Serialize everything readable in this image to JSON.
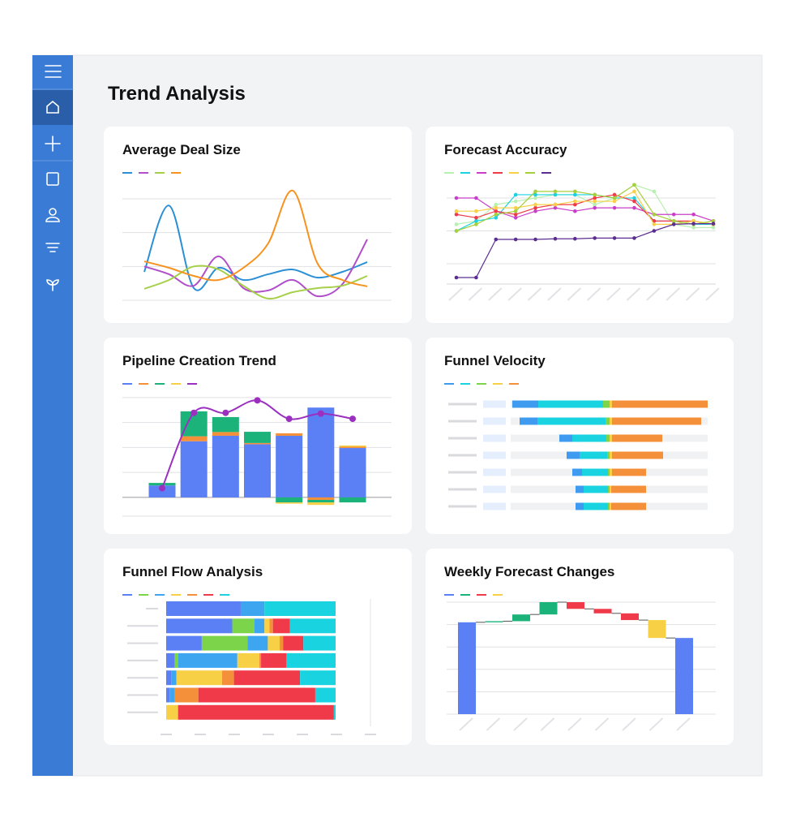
{
  "page": {
    "title": "Trend Analysis"
  },
  "chart_data": [
    {
      "type": "line",
      "title": "Average Deal Size",
      "smooth": true,
      "markers": false,
      "grid": true,
      "categories": [
        null,
        null,
        null,
        null,
        null,
        null,
        null,
        null,
        null,
        null
      ],
      "ylim": [
        0,
        3.3
      ],
      "yticks": [
        0,
        1,
        2,
        3
      ],
      "series": [
        {
          "color": "#2b8fd6",
          "values": [
            0.84,
            2.8,
            0.36,
            0.96,
            0.6,
            0.77,
            0.91,
            0.67,
            0.84,
            1.13
          ]
        },
        {
          "color": "#b04fc9",
          "values": [
            1.0,
            0.77,
            0.43,
            1.3,
            0.36,
            0.29,
            0.6,
            0.12,
            0.48,
            1.8
          ]
        },
        {
          "color": "#a6d04a",
          "values": [
            0.34,
            0.6,
            1.0,
            0.91,
            0.43,
            0.05,
            0.24,
            0.36,
            0.43,
            0.72
          ]
        },
        {
          "color": "#f7921e",
          "values": [
            1.15,
            0.96,
            0.72,
            0.6,
            0.96,
            1.68,
            3.24,
            1.08,
            0.6,
            0.41
          ]
        }
      ]
    },
    {
      "type": "line",
      "title": "Forecast Accuracy",
      "smooth": false,
      "markers": true,
      "grid": true,
      "categories": [
        null,
        null,
        null,
        null,
        null,
        null,
        null,
        null,
        null,
        null,
        null,
        null,
        null,
        null
      ],
      "ylim": [
        0,
        3.5
      ],
      "yticks": [
        1,
        2,
        3
      ],
      "series": [
        {
          "color": "#b7f0b1",
          "values": [
            2.2,
            2.3,
            2.8,
            2.9,
            3.0,
            3.1,
            3.1,
            2.8,
            3.0,
            3.4,
            3.2,
            2.2,
            2.1,
            2.1
          ]
        },
        {
          "color": "#19d3e0",
          "values": [
            2.0,
            2.3,
            2.4,
            3.1,
            3.1,
            3.1,
            3.1,
            3.1,
            3.0,
            3.0,
            2.3,
            2.3,
            2.2,
            2.2
          ]
        },
        {
          "color": "#c93ec9",
          "values": [
            3.0,
            3.0,
            2.6,
            2.4,
            2.6,
            2.7,
            2.6,
            2.7,
            2.7,
            2.7,
            2.5,
            2.5,
            2.5,
            2.3
          ]
        },
        {
          "color": "#f03a4a",
          "values": [
            2.5,
            2.4,
            2.6,
            2.5,
            2.7,
            2.8,
            2.8,
            3.0,
            3.1,
            2.9,
            2.3,
            2.3,
            2.3,
            2.2
          ]
        },
        {
          "color": "#f7d046",
          "values": [
            2.6,
            2.6,
            2.7,
            2.7,
            2.8,
            2.8,
            2.9,
            2.9,
            2.9,
            3.2,
            2.2,
            2.2,
            2.3,
            2.2
          ]
        },
        {
          "color": "#a6cf3a",
          "values": [
            2.0,
            2.2,
            2.5,
            2.6,
            3.2,
            3.2,
            3.2,
            3.1,
            3.0,
            3.4,
            2.5,
            2.3,
            2.2,
            2.3
          ]
        },
        {
          "color": "#5c2d91",
          "values": [
            0.58,
            0.58,
            1.74,
            1.74,
            1.74,
            1.76,
            1.76,
            1.78,
            1.78,
            1.78,
            2.0,
            2.2,
            2.22,
            2.22
          ]
        }
      ]
    },
    {
      "type": "combo",
      "title": "Pipeline Creation Trend",
      "grid": true,
      "categories": [
        null,
        null,
        null,
        null,
        null,
        null,
        null
      ],
      "ylim": [
        -0.75,
        4.2
      ],
      "yticks": [
        -0.75,
        0,
        1,
        2,
        3,
        4
      ],
      "series": [
        {
          "type": "bar",
          "color": "#5b7ff5",
          "values": [
            0.48,
            2.25,
            2.47,
            2.13,
            2.47,
            3.6,
            1.98
          ]
        },
        {
          "type": "bar",
          "color": "#f5903a",
          "values": [
            0,
            0.2,
            0.15,
            0.05,
            0.1,
            -0.1,
            0.05
          ]
        },
        {
          "type": "bar",
          "color": "#1bb37a",
          "values": [
            0.1,
            1.0,
            0.6,
            0.45,
            -0.2,
            -0.1,
            -0.2
          ]
        },
        {
          "type": "bar",
          "color": "#f7d046",
          "values": [
            0,
            0,
            0,
            0,
            -0.05,
            -0.1,
            0.05
          ]
        },
        {
          "type": "line",
          "color": "#9b30c0",
          "values": [
            0.37,
            3.39,
            3.39,
            3.89,
            3.15,
            3.36,
            3.15
          ]
        }
      ]
    },
    {
      "type": "diverging_barh",
      "title": "Funnel Velocity",
      "categories": [
        null,
        null,
        null,
        null,
        null,
        null,
        null
      ],
      "xlim": [
        -120,
        120
      ],
      "series": [
        {
          "side": "left",
          "color": "#3e9bf0",
          "values": [
            32,
            22,
            16,
            16,
            12,
            10,
            10
          ]
        },
        {
          "side": "left",
          "color": "#19d3e0",
          "values": [
            80,
            84,
            42,
            34,
            32,
            30,
            30
          ]
        },
        {
          "side": "left",
          "color": "#7bd44a",
          "values": [
            8,
            5,
            4,
            3,
            2,
            2,
            2
          ]
        },
        {
          "side": "right",
          "color": "#f7d046",
          "values": [
            3,
            3,
            3,
            3,
            3,
            2,
            2
          ]
        },
        {
          "side": "right",
          "color": "#f5903a",
          "values": [
            118,
            110,
            62,
            63,
            42,
            43,
            43
          ]
        }
      ]
    },
    {
      "type": "stacked_barh",
      "title": "Funnel Flow Analysis",
      "categories": [
        null,
        null,
        null,
        null,
        null,
        null,
        null
      ],
      "xlim": [
        0,
        100
      ],
      "series": [
        {
          "color": "#5b7ff5",
          "values": [
            44,
            39,
            21,
            5,
            3,
            2,
            0
          ]
        },
        {
          "color": "#7bd44a",
          "values": [
            0,
            13,
            27,
            2,
            0,
            0,
            0
          ]
        },
        {
          "color": "#3ea6f0",
          "values": [
            14,
            6,
            12,
            35,
            3,
            3,
            0
          ]
        },
        {
          "color": "#f7d046",
          "values": [
            0,
            3,
            7,
            13,
            27,
            0,
            7
          ]
        },
        {
          "color": "#f5903a",
          "values": [
            0,
            2,
            2,
            1,
            7,
            14,
            0
          ]
        },
        {
          "color": "#f03a4a",
          "values": [
            0,
            10,
            12,
            15,
            39,
            69,
            92
          ]
        },
        {
          "color": "#19d3e0",
          "values": [
            42,
            27,
            19,
            29,
            21,
            12,
            1
          ]
        }
      ]
    },
    {
      "type": "waterfall",
      "title": "Weekly Forecast Changes",
      "grid": true,
      "categories": [
        null,
        null,
        null,
        null,
        null,
        null,
        null,
        null,
        null
      ],
      "ylim": [
        0,
        5.2
      ],
      "yticks": [
        0,
        1,
        2,
        3,
        4,
        5
      ],
      "values": [
        4.1,
        0.05,
        0.3,
        0.55,
        -0.3,
        -0.2,
        -0.3,
        -0.8,
        3.4
      ],
      "measure": [
        "total",
        "relative",
        "relative",
        "relative",
        "relative",
        "relative",
        "relative",
        "relative",
        "total"
      ],
      "bar_colors": [
        "#5b7ff5",
        "#1bb37a",
        "#1bb37a",
        "#1bb37a",
        "#f03a4a",
        "#f03a4a",
        "#f03a4a",
        "#f7d046",
        "#5b7ff5"
      ]
    }
  ]
}
